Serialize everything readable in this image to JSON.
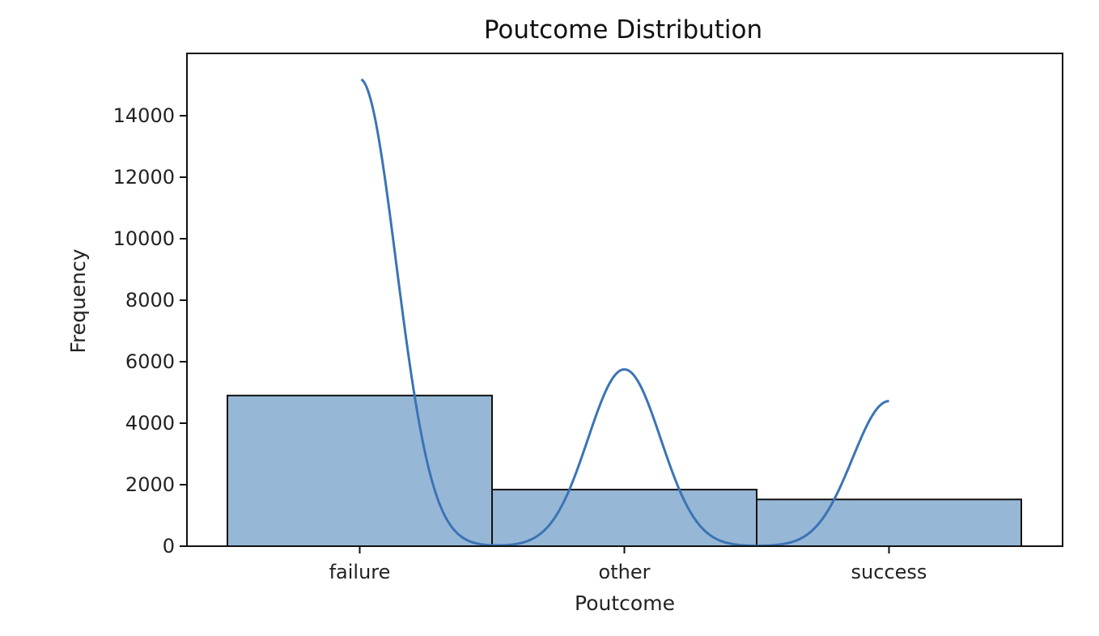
{
  "chart_data": {
    "type": "bar",
    "title": "Poutcome Distribution",
    "xlabel": "Poutcome",
    "ylabel": "Frequency",
    "categories": [
      "failure",
      "other",
      "success"
    ],
    "values": [
      4900,
      1840,
      1520
    ],
    "ylim": [
      0,
      16000
    ],
    "yticks": [
      0,
      2000,
      4000,
      6000,
      8000,
      10000,
      12000,
      14000
    ],
    "ytick_labels": [
      "0",
      "2000",
      "4000",
      "6000",
      "8000",
      "10000",
      "12000",
      "14000"
    ],
    "grid": false,
    "bar_color": "#97b7d6",
    "bar_edge_color": "#111111",
    "kde": {
      "color": "#3a74b5",
      "peaks": [
        15200,
        5750,
        4720
      ]
    }
  }
}
